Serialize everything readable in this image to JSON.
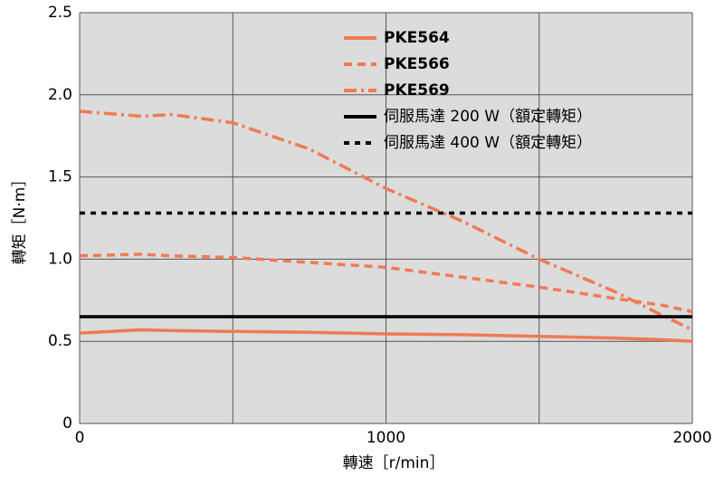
{
  "chart_data": {
    "type": "line",
    "x_label": "轉速［r/min］",
    "y_label": "轉矩［N·m］",
    "x": [
      0,
      200,
      300,
      500,
      750,
      1000,
      1250,
      1500,
      1750,
      1900,
      2000
    ],
    "series": [
      {
        "name": "PKE564",
        "color": "#f07a55",
        "dash": "solid",
        "values": [
          0.55,
          0.57,
          0.565,
          0.56,
          0.555,
          0.545,
          0.54,
          0.53,
          0.52,
          0.51,
          0.5
        ]
      },
      {
        "name": "PKE566",
        "color": "#f07a55",
        "dash": "dashed",
        "values": [
          1.02,
          1.03,
          1.02,
          1.01,
          0.98,
          0.95,
          0.89,
          0.83,
          0.76,
          0.72,
          0.68
        ]
      },
      {
        "name": "PKE569",
        "color": "#f07a55",
        "dash": "dashdot",
        "values": [
          1.9,
          1.87,
          1.88,
          1.83,
          1.67,
          1.43,
          1.23,
          1.0,
          0.8,
          0.66,
          0.57
        ]
      },
      {
        "name": "伺服馬達 200 W（額定轉矩）",
        "color": "#000000",
        "dash": "solid",
        "values": [
          0.65,
          0.65,
          0.65,
          0.65,
          0.65,
          0.65,
          0.65,
          0.65,
          0.65,
          0.65,
          0.65
        ]
      },
      {
        "name": "伺服馬達 400 W（額定轉矩）",
        "color": "#000000",
        "dash": "dotted",
        "values": [
          1.28,
          1.28,
          1.28,
          1.28,
          1.28,
          1.28,
          1.28,
          1.28,
          1.28,
          1.28,
          1.28
        ]
      }
    ],
    "xlim": [
      0,
      2000
    ],
    "xticks": [
      0,
      1000,
      2000
    ],
    "xgrid": [
      500,
      1500
    ],
    "ylim": [
      0,
      2.5
    ],
    "yticks": [
      0,
      0.5,
      {
        "value": 1,
        "label": "1.0"
      },
      {
        "value": 1.5,
        "label": "1.5"
      },
      {
        "value": 2,
        "label": "2.0"
      },
      2.5
    ],
    "grid": true,
    "background": "#dcdcdc",
    "legend": "top-right"
  }
}
